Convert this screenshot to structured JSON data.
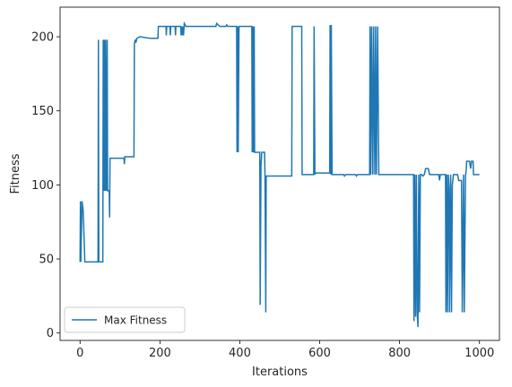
{
  "chart_data": {
    "type": "line",
    "title": "",
    "xlabel": "Iterations",
    "ylabel": "Fitness",
    "xlim": [
      -50,
      1050
    ],
    "ylim": [
      -5,
      220
    ],
    "xticks": [
      0,
      200,
      400,
      600,
      800,
      1000
    ],
    "yticks": [
      0,
      50,
      100,
      150,
      200
    ],
    "legend": {
      "position": "lower-left"
    },
    "series": [
      {
        "name": "Max Fitness",
        "color": "#1f77b4",
        "points": [
          [
            0,
            48
          ],
          [
            1,
            89
          ],
          [
            2,
            48
          ],
          [
            5,
            89
          ],
          [
            8,
            82
          ],
          [
            12,
            48
          ],
          [
            20,
            48
          ],
          [
            45,
            48
          ],
          [
            46,
            198
          ],
          [
            47,
            48
          ],
          [
            57,
            48
          ],
          [
            58,
            198
          ],
          [
            60,
            96
          ],
          [
            61,
            198
          ],
          [
            63,
            96
          ],
          [
            64,
            198
          ],
          [
            66,
            96
          ],
          [
            68,
            198
          ],
          [
            69,
            96
          ],
          [
            73,
            96
          ],
          [
            74,
            78
          ],
          [
            75,
            118
          ],
          [
            110,
            118
          ],
          [
            111,
            114
          ],
          [
            112,
            119
          ],
          [
            135,
            119
          ],
          [
            136,
            195
          ],
          [
            138,
            198
          ],
          [
            140,
            196
          ],
          [
            142,
            199
          ],
          [
            150,
            200
          ],
          [
            175,
            199
          ],
          [
            195,
            199
          ],
          [
            196,
            207
          ],
          [
            215,
            207
          ],
          [
            216,
            201
          ],
          [
            217,
            207
          ],
          [
            225,
            207
          ],
          [
            226,
            201
          ],
          [
            227,
            207
          ],
          [
            238,
            207
          ],
          [
            239,
            201
          ],
          [
            240,
            207
          ],
          [
            252,
            207
          ],
          [
            253,
            201
          ],
          [
            254,
            207
          ],
          [
            256,
            201
          ],
          [
            258,
            207
          ],
          [
            259,
            201
          ],
          [
            261,
            209
          ],
          [
            265,
            207
          ],
          [
            340,
            207
          ],
          [
            342,
            209
          ],
          [
            346,
            208
          ],
          [
            350,
            207
          ],
          [
            365,
            207
          ],
          [
            367,
            208
          ],
          [
            370,
            207
          ],
          [
            392,
            207
          ],
          [
            393,
            122
          ],
          [
            395,
            207
          ],
          [
            396,
            122
          ],
          [
            398,
            207
          ],
          [
            430,
            207
          ],
          [
            431,
            122
          ],
          [
            433,
            207
          ],
          [
            434,
            122
          ],
          [
            436,
            207
          ],
          [
            437,
            122
          ],
          [
            450,
            122
          ],
          [
            451,
            19
          ],
          [
            453,
            113
          ],
          [
            455,
            122
          ],
          [
            462,
            122
          ],
          [
            463,
            106
          ],
          [
            465,
            14
          ],
          [
            466,
            106
          ],
          [
            520,
            106
          ],
          [
            530,
            106
          ],
          [
            531,
            207
          ],
          [
            555,
            207
          ],
          [
            556,
            107
          ],
          [
            585,
            107
          ],
          [
            586,
            207
          ],
          [
            588,
            107
          ],
          [
            590,
            108
          ],
          [
            625,
            108
          ],
          [
            626,
            208
          ],
          [
            628,
            107
          ],
          [
            629,
            208
          ],
          [
            631,
            107
          ],
          [
            635,
            107
          ],
          [
            660,
            107
          ],
          [
            662,
            106
          ],
          [
            665,
            107
          ],
          [
            690,
            107
          ],
          [
            692,
            106
          ],
          [
            695,
            107
          ],
          [
            725,
            107
          ],
          [
            726,
            207
          ],
          [
            728,
            107
          ],
          [
            730,
            207
          ],
          [
            733,
            107
          ],
          [
            735,
            207
          ],
          [
            738,
            107
          ],
          [
            740,
            207
          ],
          [
            742,
            107
          ],
          [
            745,
            207
          ],
          [
            748,
            107
          ],
          [
            835,
            107
          ],
          [
            836,
            8
          ],
          [
            838,
            107
          ],
          [
            840,
            11
          ],
          [
            842,
            107
          ],
          [
            844,
            14
          ],
          [
            846,
            4
          ],
          [
            848,
            107
          ],
          [
            850,
            14
          ],
          [
            852,
            107
          ],
          [
            855,
            107
          ],
          [
            858,
            106
          ],
          [
            862,
            107
          ],
          [
            865,
            111
          ],
          [
            872,
            111
          ],
          [
            875,
            107
          ],
          [
            898,
            107
          ],
          [
            900,
            103
          ],
          [
            902,
            107
          ],
          [
            915,
            107
          ],
          [
            916,
            14
          ],
          [
            918,
            107
          ],
          [
            920,
            14
          ],
          [
            922,
            107
          ],
          [
            924,
            98
          ],
          [
            925,
            14
          ],
          [
            928,
            107
          ],
          [
            930,
            14
          ],
          [
            932,
            100
          ],
          [
            935,
            107
          ],
          [
            945,
            107
          ],
          [
            948,
            103
          ],
          [
            955,
            103
          ],
          [
            957,
            14
          ],
          [
            960,
            107
          ],
          [
            962,
            14
          ],
          [
            965,
            106
          ],
          [
            967,
            111
          ],
          [
            968,
            116
          ],
          [
            975,
            116
          ],
          [
            978,
            111
          ],
          [
            980,
            116
          ],
          [
            984,
            116
          ],
          [
            985,
            107
          ],
          [
            1000,
            107
          ]
        ]
      }
    ]
  }
}
